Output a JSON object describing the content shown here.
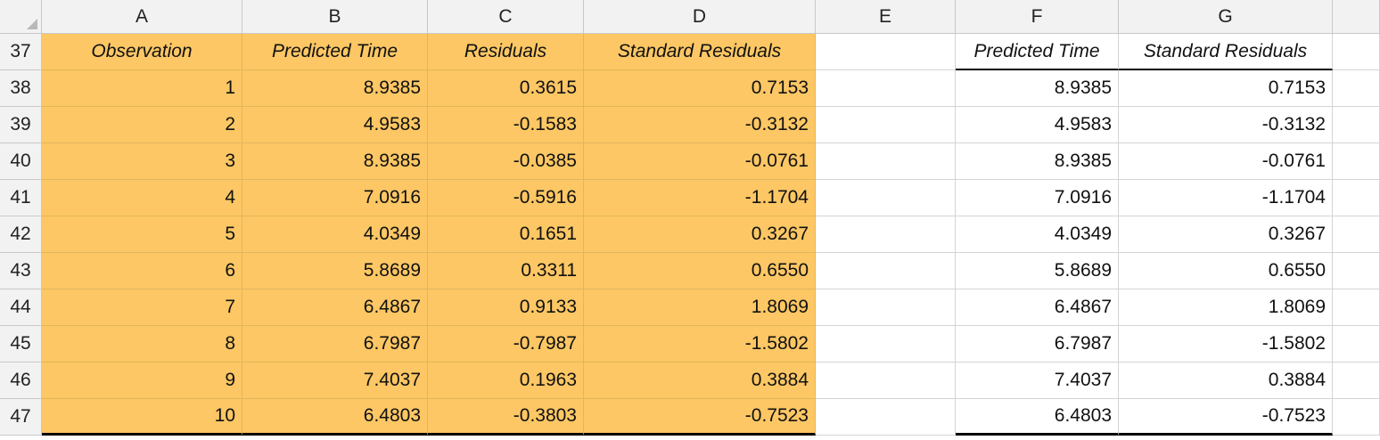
{
  "columns": [
    "A",
    "B",
    "C",
    "D",
    "E",
    "F",
    "G"
  ],
  "header_row": {
    "row_number": "37",
    "left": [
      "Observation",
      "Predicted Time",
      "Residuals",
      "Standard Residuals"
    ],
    "right": [
      "Predicted Time",
      "Standard Residuals"
    ]
  },
  "rows": [
    {
      "n": "38",
      "obs": "1",
      "pred": "8.9385",
      "res": "0.3615",
      "std": "0.7153",
      "f": "8.9385",
      "g": "0.7153"
    },
    {
      "n": "39",
      "obs": "2",
      "pred": "4.9583",
      "res": "-0.1583",
      "std": "-0.3132",
      "f": "4.9583",
      "g": "-0.3132"
    },
    {
      "n": "40",
      "obs": "3",
      "pred": "8.9385",
      "res": "-0.0385",
      "std": "-0.0761",
      "f": "8.9385",
      "g": "-0.0761"
    },
    {
      "n": "41",
      "obs": "4",
      "pred": "7.0916",
      "res": "-0.5916",
      "std": "-1.1704",
      "f": "7.0916",
      "g": "-1.1704"
    },
    {
      "n": "42",
      "obs": "5",
      "pred": "4.0349",
      "res": "0.1651",
      "std": "0.3267",
      "f": "4.0349",
      "g": "0.3267"
    },
    {
      "n": "43",
      "obs": "6",
      "pred": "5.8689",
      "res": "0.3311",
      "std": "0.6550",
      "f": "5.8689",
      "g": "0.6550"
    },
    {
      "n": "44",
      "obs": "7",
      "pred": "6.4867",
      "res": "0.9133",
      "std": "1.8069",
      "f": "6.4867",
      "g": "1.8069"
    },
    {
      "n": "45",
      "obs": "8",
      "pred": "6.7987",
      "res": "-0.7987",
      "std": "-1.5802",
      "f": "6.7987",
      "g": "-1.5802"
    },
    {
      "n": "46",
      "obs": "9",
      "pred": "7.4037",
      "res": "0.1963",
      "std": "0.3884",
      "f": "7.4037",
      "g": "0.3884"
    },
    {
      "n": "47",
      "obs": "10",
      "pred": "6.4803",
      "res": "-0.3803",
      "std": "-0.7523",
      "f": "6.4803",
      "g": "-0.7523"
    }
  ],
  "colors": {
    "highlight": "#fcc764",
    "header_bg": "#f2f2f2",
    "grid": "#d4d4d4"
  }
}
